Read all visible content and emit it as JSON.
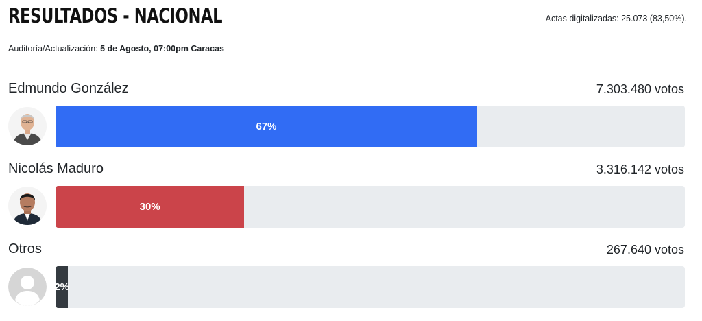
{
  "header": {
    "title": "RESULTADOS - NACIONAL",
    "actas": "Actas digitalizadas: 25.073 (83,50%).",
    "audit_label": "Auditoría/Actualización: ",
    "audit_value": "5 de Agosto, 07:00pm Caracas"
  },
  "candidates": [
    {
      "name": "Edmundo González",
      "votes": "7.303.480 votos",
      "percent_label": "67%",
      "percent": 67,
      "color": "#316cf4"
    },
    {
      "name": "Nicolás Maduro",
      "votes": "3.316.142 votos",
      "percent_label": "30%",
      "percent": 30,
      "color": "#cb444a"
    },
    {
      "name": "Otros",
      "votes": "267.640 votos",
      "percent_label": "2%",
      "percent": 2,
      "color": "#343a40"
    }
  ]
}
